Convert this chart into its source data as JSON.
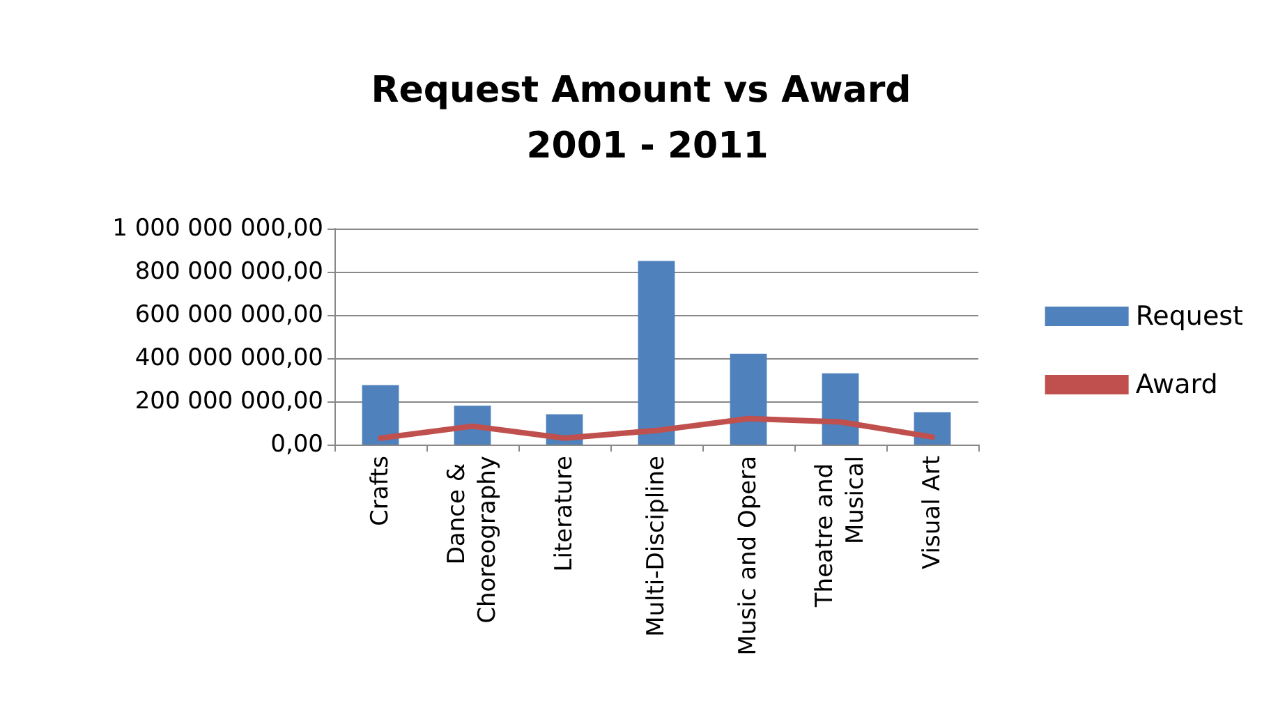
{
  "chart_data": {
    "type": "bar",
    "title": "Request Amount vs Award 2001 - 2011",
    "categories": [
      "Crafts",
      "Dance & Choreography",
      "Literature",
      "Multi-Discipline",
      "Music and Opera",
      "Theatre and Musical",
      "Visual Art"
    ],
    "series": [
      {
        "name": "Request",
        "color": "#4f81bd",
        "values": [
          275000000,
          180000000,
          140000000,
          850000000,
          420000000,
          330000000,
          150000000
        ]
      },
      {
        "name": "Award",
        "type": "line",
        "color": "#c0504d",
        "values": [
          30000000,
          85000000,
          30000000,
          65000000,
          120000000,
          105000000,
          35000000
        ]
      }
    ],
    "ylim": [
      0,
      1000000000
    ],
    "yticks": [
      {
        "value": 0,
        "label": "0,00"
      },
      {
        "value": 200000000,
        "label": "200 000 000,00"
      },
      {
        "value": 400000000,
        "label": "400 000 000,00"
      },
      {
        "value": 600000000,
        "label": "600 000 000,00"
      },
      {
        "value": 800000000,
        "label": "800 000 000,00"
      },
      {
        "value": 1000000000,
        "label": "1 000 000 000,00"
      }
    ],
    "grid": "y",
    "legend": "right",
    "marker": "none"
  }
}
